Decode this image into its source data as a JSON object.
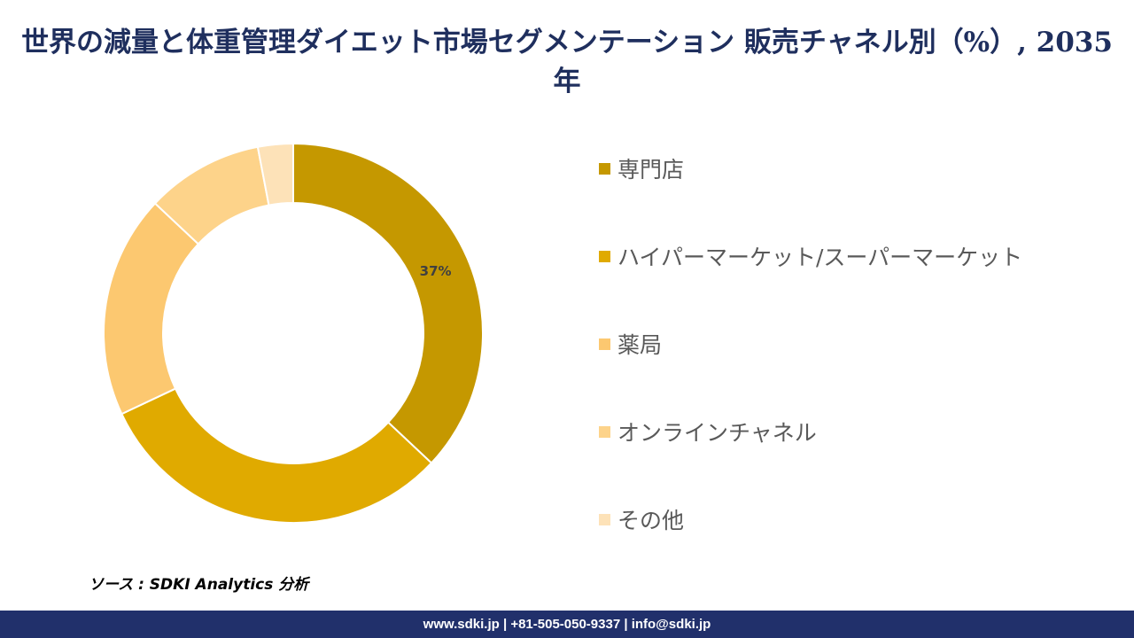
{
  "title": "世界の減量と体重管理ダイエット市場セグメンテーション 販売チャネル別（%）, 2035年",
  "source": "ソース : SDKI Analytics 分析",
  "footer": "www.sdki.jp | +81-505-050-9337 | info@sdki.jp",
  "chart_data": {
    "type": "pie",
    "title": "世界の減量と体重管理ダイエット市場セグメンテーション 販売チャネル別（%）, 2035年",
    "categories": [
      "専門店",
      "ハイパーマーケット/スーパーマーケット",
      "薬局",
      "オンラインチャネル",
      "その他"
    ],
    "values": [
      37,
      31,
      19,
      10,
      3
    ],
    "data_labels": [
      "37%",
      "",
      "",
      "",
      ""
    ],
    "colors": [
      "#c59800",
      "#e0aa00",
      "#fcc870",
      "#fdd38a",
      "#fde2b8"
    ],
    "legend_position": "right"
  }
}
